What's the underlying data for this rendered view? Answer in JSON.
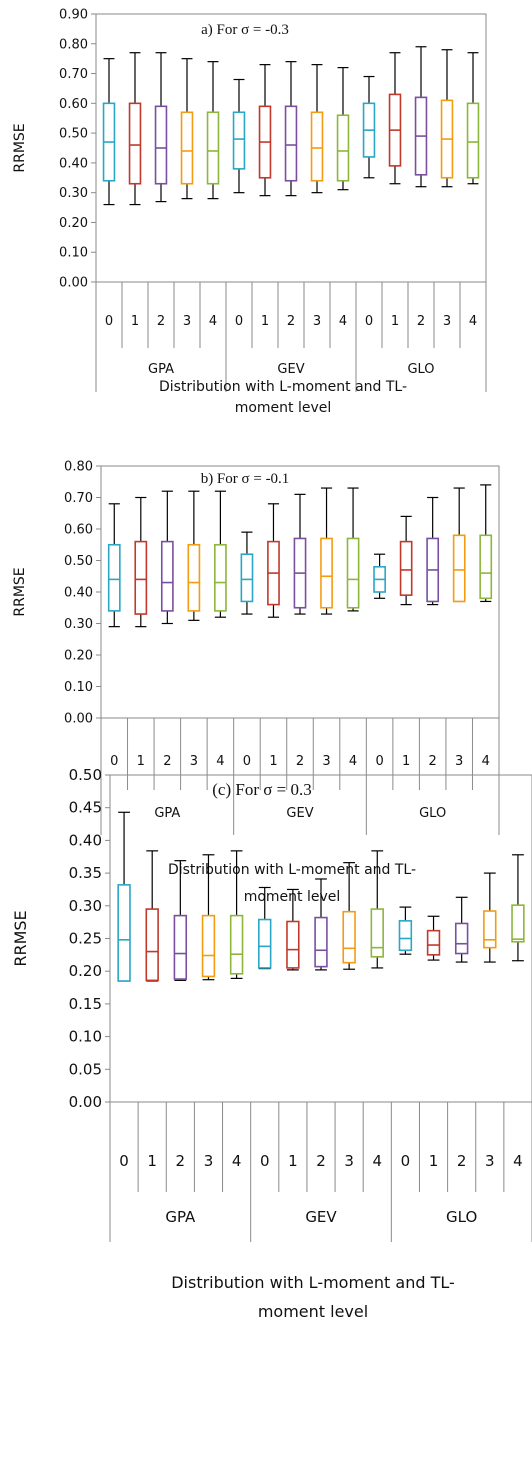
{
  "chart_data": [
    {
      "type": "boxplot",
      "title": "a) For σ = -0.3",
      "ylabel": "RRMSE",
      "xlabel_line1": "Distribution with L-moment and TL-",
      "xlabel_line2": "moment level",
      "ylim": [
        0,
        0.9
      ],
      "yticks": [
        "0.00",
        "0.10",
        "0.20",
        "0.30",
        "0.40",
        "0.50",
        "0.60",
        "0.70",
        "0.80",
        "0.90"
      ],
      "grid": false,
      "legend": "none",
      "groups": [
        "GPA",
        "GEV",
        "GLO"
      ],
      "levels": [
        "0",
        "1",
        "2",
        "3",
        "4"
      ],
      "series": [
        {
          "group": "GPA",
          "level": "0",
          "min": 0.26,
          "q1": 0.34,
          "median": 0.47,
          "q3": 0.6,
          "max": 0.75
        },
        {
          "group": "GPA",
          "level": "1",
          "min": 0.26,
          "q1": 0.33,
          "median": 0.46,
          "q3": 0.6,
          "max": 0.77
        },
        {
          "group": "GPA",
          "level": "2",
          "min": 0.27,
          "q1": 0.33,
          "median": 0.45,
          "q3": 0.59,
          "max": 0.77
        },
        {
          "group": "GPA",
          "level": "3",
          "min": 0.28,
          "q1": 0.33,
          "median": 0.44,
          "q3": 0.57,
          "max": 0.75
        },
        {
          "group": "GPA",
          "level": "4",
          "min": 0.28,
          "q1": 0.33,
          "median": 0.44,
          "q3": 0.57,
          "max": 0.74
        },
        {
          "group": "GEV",
          "level": "0",
          "min": 0.3,
          "q1": 0.38,
          "median": 0.48,
          "q3": 0.57,
          "max": 0.68
        },
        {
          "group": "GEV",
          "level": "1",
          "min": 0.29,
          "q1": 0.35,
          "median": 0.47,
          "q3": 0.59,
          "max": 0.73
        },
        {
          "group": "GEV",
          "level": "2",
          "min": 0.29,
          "q1": 0.34,
          "median": 0.46,
          "q3": 0.59,
          "max": 0.74
        },
        {
          "group": "GEV",
          "level": "3",
          "min": 0.3,
          "q1": 0.34,
          "median": 0.45,
          "q3": 0.57,
          "max": 0.73
        },
        {
          "group": "GEV",
          "level": "4",
          "min": 0.31,
          "q1": 0.34,
          "median": 0.44,
          "q3": 0.56,
          "max": 0.72
        },
        {
          "group": "GLO",
          "level": "0",
          "min": 0.35,
          "q1": 0.42,
          "median": 0.51,
          "q3": 0.6,
          "max": 0.69
        },
        {
          "group": "GLO",
          "level": "1",
          "min": 0.33,
          "q1": 0.39,
          "median": 0.51,
          "q3": 0.63,
          "max": 0.77
        },
        {
          "group": "GLO",
          "level": "2",
          "min": 0.32,
          "q1": 0.36,
          "median": 0.49,
          "q3": 0.62,
          "max": 0.79
        },
        {
          "group": "GLO",
          "level": "3",
          "min": 0.32,
          "q1": 0.35,
          "median": 0.48,
          "q3": 0.61,
          "max": 0.78
        },
        {
          "group": "GLO",
          "level": "4",
          "min": 0.33,
          "q1": 0.35,
          "median": 0.47,
          "q3": 0.6,
          "max": 0.77
        }
      ]
    },
    {
      "type": "boxplot",
      "title": "b) For σ = -0.1",
      "ylabel": "RRMSE",
      "xlabel_line1": "Distribution with L-moment and TL-",
      "xlabel_line2": "moment level",
      "ylim": [
        0,
        0.8
      ],
      "yticks": [
        "0.00",
        "0.10",
        "0.20",
        "0.30",
        "0.40",
        "0.50",
        "0.60",
        "0.70",
        "0.80"
      ],
      "grid": false,
      "legend": "none",
      "groups": [
        "GPA",
        "GEV",
        "GLO"
      ],
      "levels": [
        "0",
        "1",
        "2",
        "3",
        "4"
      ],
      "series": [
        {
          "group": "GPA",
          "level": "0",
          "min": 0.29,
          "q1": 0.34,
          "median": 0.44,
          "q3": 0.55,
          "max": 0.68
        },
        {
          "group": "GPA",
          "level": "1",
          "min": 0.29,
          "q1": 0.33,
          "median": 0.44,
          "q3": 0.56,
          "max": 0.7
        },
        {
          "group": "GPA",
          "level": "2",
          "min": 0.3,
          "q1": 0.34,
          "median": 0.43,
          "q3": 0.56,
          "max": 0.72
        },
        {
          "group": "GPA",
          "level": "3",
          "min": 0.31,
          "q1": 0.34,
          "median": 0.43,
          "q3": 0.55,
          "max": 0.72
        },
        {
          "group": "GPA",
          "level": "4",
          "min": 0.32,
          "q1": 0.34,
          "median": 0.43,
          "q3": 0.55,
          "max": 0.72
        },
        {
          "group": "GEV",
          "level": "0",
          "min": 0.33,
          "q1": 0.37,
          "median": 0.44,
          "q3": 0.52,
          "max": 0.59
        },
        {
          "group": "GEV",
          "level": "1",
          "min": 0.32,
          "q1": 0.36,
          "median": 0.46,
          "q3": 0.56,
          "max": 0.68
        },
        {
          "group": "GEV",
          "level": "2",
          "min": 0.33,
          "q1": 0.35,
          "median": 0.46,
          "q3": 0.57,
          "max": 0.71
        },
        {
          "group": "GEV",
          "level": "3",
          "min": 0.33,
          "q1": 0.35,
          "median": 0.45,
          "q3": 0.57,
          "max": 0.73
        },
        {
          "group": "GEV",
          "level": "4",
          "min": 0.34,
          "q1": 0.35,
          "median": 0.44,
          "q3": 0.57,
          "max": 0.73
        },
        {
          "group": "GLO",
          "level": "0",
          "min": 0.38,
          "q1": 0.4,
          "median": 0.44,
          "q3": 0.48,
          "max": 0.52
        },
        {
          "group": "GLO",
          "level": "1",
          "min": 0.36,
          "q1": 0.39,
          "median": 0.47,
          "q3": 0.56,
          "max": 0.64
        },
        {
          "group": "GLO",
          "level": "2",
          "min": 0.36,
          "q1": 0.37,
          "median": 0.47,
          "q3": 0.57,
          "max": 0.7
        },
        {
          "group": "GLO",
          "level": "3",
          "min": 0.37,
          "q1": 0.37,
          "median": 0.47,
          "q3": 0.58,
          "max": 0.73
        },
        {
          "group": "GLO",
          "level": "4",
          "min": 0.37,
          "q1": 0.38,
          "median": 0.46,
          "q3": 0.58,
          "max": 0.74
        }
      ]
    },
    {
      "type": "boxplot",
      "title": "(c) For σ = 0.3",
      "ylabel": "RRMSE",
      "xlabel_line1": "Distribution with L-moment and TL-",
      "xlabel_line2": "moment level",
      "ylim": [
        0,
        0.5
      ],
      "yticks": [
        "0.00",
        "0.05",
        "0.10",
        "0.15",
        "0.20",
        "0.25",
        "0.30",
        "0.35",
        "0.40",
        "0.45",
        "0.50"
      ],
      "grid": false,
      "legend": "none",
      "groups": [
        "GPA",
        "GEV",
        "GLO"
      ],
      "levels": [
        "0",
        "1",
        "2",
        "3",
        "4"
      ],
      "series": [
        {
          "group": "GPA",
          "level": "0",
          "min": 0.185,
          "q1": 0.185,
          "median": 0.248,
          "q3": 0.332,
          "max": 0.443
        },
        {
          "group": "GPA",
          "level": "1",
          "min": 0.185,
          "q1": 0.186,
          "median": 0.23,
          "q3": 0.295,
          "max": 0.384
        },
        {
          "group": "GPA",
          "level": "2",
          "min": 0.186,
          "q1": 0.188,
          "median": 0.227,
          "q3": 0.285,
          "max": 0.369
        },
        {
          "group": "GPA",
          "level": "3",
          "min": 0.187,
          "q1": 0.192,
          "median": 0.224,
          "q3": 0.285,
          "max": 0.378
        },
        {
          "group": "GPA",
          "level": "4",
          "min": 0.189,
          "q1": 0.196,
          "median": 0.226,
          "q3": 0.285,
          "max": 0.384
        },
        {
          "group": "GEV",
          "level": "0",
          "min": 0.204,
          "q1": 0.205,
          "median": 0.238,
          "q3": 0.279,
          "max": 0.328
        },
        {
          "group": "GEV",
          "level": "1",
          "min": 0.202,
          "q1": 0.205,
          "median": 0.233,
          "q3": 0.276,
          "max": 0.325
        },
        {
          "group": "GEV",
          "level": "2",
          "min": 0.202,
          "q1": 0.207,
          "median": 0.232,
          "q3": 0.282,
          "max": 0.341
        },
        {
          "group": "GEV",
          "level": "3",
          "min": 0.203,
          "q1": 0.213,
          "median": 0.235,
          "q3": 0.291,
          "max": 0.366
        },
        {
          "group": "GEV",
          "level": "4",
          "min": 0.205,
          "q1": 0.222,
          "median": 0.236,
          "q3": 0.295,
          "max": 0.384
        },
        {
          "group": "GLO",
          "level": "0",
          "min": 0.226,
          "q1": 0.232,
          "median": 0.25,
          "q3": 0.277,
          "max": 0.298
        },
        {
          "group": "GLO",
          "level": "1",
          "min": 0.217,
          "q1": 0.225,
          "median": 0.24,
          "q3": 0.262,
          "max": 0.284
        },
        {
          "group": "GLO",
          "level": "2",
          "min": 0.214,
          "q1": 0.227,
          "median": 0.242,
          "q3": 0.273,
          "max": 0.313
        },
        {
          "group": "GLO",
          "level": "3",
          "min": 0.214,
          "q1": 0.236,
          "median": 0.248,
          "q3": 0.292,
          "max": 0.35
        },
        {
          "group": "GLO",
          "level": "4",
          "min": 0.216,
          "q1": 0.245,
          "median": 0.249,
          "q3": 0.301,
          "max": 0.378
        }
      ]
    }
  ],
  "series_colors": [
    "#2aa7c7",
    "#c0392b",
    "#7a4fa0",
    "#f39c12",
    "#8db63c"
  ]
}
